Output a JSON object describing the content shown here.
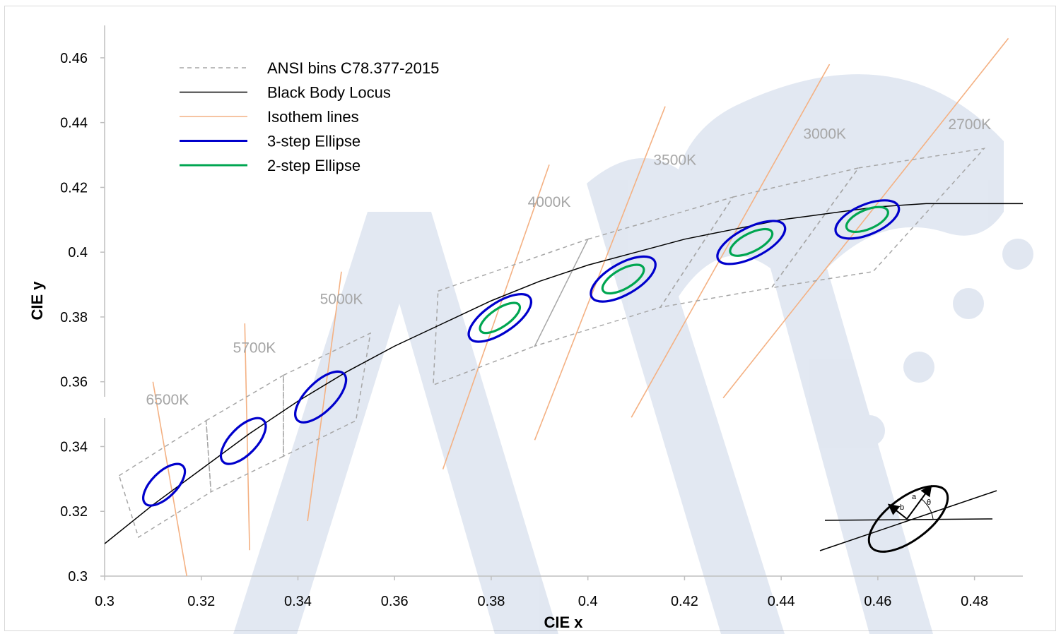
{
  "chart_data": {
    "type": "line",
    "xlabel": "CIE x",
    "ylabel": "CIE y",
    "xlim": [
      0.3,
      0.49
    ],
    "ylim": [
      0.3,
      0.47
    ],
    "x_ticks": [
      "0.3",
      "0.32",
      "0.34",
      "0.36",
      "0.38",
      "0.4",
      "0.42",
      "0.44",
      "0.46",
      "0.48"
    ],
    "y_ticks": [
      "0.3",
      "0.32",
      "0.34",
      "0.36",
      "0.38",
      "0.4",
      "0.42",
      "0.44",
      "0.46"
    ],
    "grid": false,
    "legend_position": "top-left",
    "legend": [
      {
        "label": "ANSI bins C78.377-2015",
        "color": "#a6a6a6",
        "style": "dashed",
        "width": 1.5
      },
      {
        "label": "Black Body Locus",
        "color": "#000000",
        "style": "solid",
        "width": 1.5
      },
      {
        "label": "Isothem lines",
        "color": "#f4b183",
        "style": "solid",
        "width": 1.5
      },
      {
        "label": "3-step Ellipse",
        "color": "#0000cc",
        "style": "solid",
        "width": 3
      },
      {
        "label": "2-step Ellipse",
        "color": "#00a651",
        "style": "solid",
        "width": 3
      }
    ],
    "colors": {
      "ansi": "#a6a6a6",
      "locus": "#000000",
      "isotherm": "#f4b183",
      "ellipse3": "#0000cc",
      "ellipse2": "#00a651",
      "cct_label": "#a6a6a6"
    },
    "locus": [
      [
        0.3,
        0.31
      ],
      [
        0.31,
        0.322
      ],
      [
        0.32,
        0.333
      ],
      [
        0.33,
        0.344
      ],
      [
        0.34,
        0.354
      ],
      [
        0.35,
        0.363
      ],
      [
        0.36,
        0.371
      ],
      [
        0.37,
        0.378
      ],
      [
        0.38,
        0.385
      ],
      [
        0.39,
        0.391
      ],
      [
        0.4,
        0.396
      ],
      [
        0.41,
        0.4
      ],
      [
        0.42,
        0.404
      ],
      [
        0.43,
        0.407
      ],
      [
        0.44,
        0.41
      ],
      [
        0.45,
        0.412
      ],
      [
        0.46,
        0.414
      ],
      [
        0.47,
        0.415
      ],
      [
        0.48,
        0.415
      ],
      [
        0.49,
        0.415
      ]
    ],
    "isotherms": [
      {
        "cct": "6500K",
        "from": [
          0.31,
          0.36
        ],
        "to": [
          0.317,
          0.3
        ],
        "label_at": [
          0.313,
          0.353
        ]
      },
      {
        "cct": "5700K",
        "from": [
          0.329,
          0.378
        ],
        "to": [
          0.33,
          0.308
        ],
        "label_at": [
          0.331,
          0.369
        ]
      },
      {
        "cct": "5000K",
        "from": [
          0.349,
          0.394
        ],
        "to": [
          0.342,
          0.317
        ],
        "label_at": [
          0.349,
          0.384
        ]
      },
      {
        "cct": "4000K",
        "from": [
          0.392,
          0.427
        ],
        "to": [
          0.37,
          0.333
        ],
        "label_at": [
          0.392,
          0.414
        ]
      },
      {
        "cct": "3500K",
        "from": [
          0.416,
          0.445
        ],
        "to": [
          0.389,
          0.342
        ],
        "label_at": [
          0.418,
          0.427
        ]
      },
      {
        "cct": "3000K",
        "from": [
          0.45,
          0.458
        ],
        "to": [
          0.409,
          0.349
        ],
        "label_at": [
          0.449,
          0.435
        ]
      },
      {
        "cct": "2700K",
        "from": [
          0.487,
          0.466
        ],
        "to": [
          0.428,
          0.355
        ],
        "label_at": [
          0.479,
          0.438
        ]
      }
    ],
    "ansi_bins": [
      [
        [
          0.303,
          0.331
        ],
        [
          0.321,
          0.348
        ],
        [
          0.322,
          0.326
        ],
        [
          0.307,
          0.312
        ]
      ],
      [
        [
          0.321,
          0.348
        ],
        [
          0.337,
          0.362
        ],
        [
          0.337,
          0.337
        ],
        [
          0.322,
          0.326
        ]
      ],
      [
        [
          0.337,
          0.362
        ],
        [
          0.355,
          0.375
        ],
        [
          0.352,
          0.348
        ],
        [
          0.337,
          0.337
        ]
      ],
      [
        [
          0.369,
          0.388
        ],
        [
          0.4,
          0.404
        ],
        [
          0.389,
          0.371
        ],
        [
          0.368,
          0.359
        ]
      ],
      [
        [
          0.4,
          0.404
        ],
        [
          0.43,
          0.417
        ],
        [
          0.415,
          0.383
        ],
        [
          0.389,
          0.371
        ]
      ],
      [
        [
          0.43,
          0.417
        ],
        [
          0.456,
          0.426
        ],
        [
          0.438,
          0.389
        ],
        [
          0.415,
          0.383
        ]
      ],
      [
        [
          0.456,
          0.426
        ],
        [
          0.482,
          0.432
        ],
        [
          0.459,
          0.394
        ],
        [
          0.438,
          0.389
        ]
      ]
    ],
    "ellipses_3step": [
      {
        "cx": 0.3123,
        "cy": 0.3282,
        "rx": 0.0055,
        "ry": 0.0026,
        "angle": 45
      },
      {
        "cx": 0.3287,
        "cy": 0.3417,
        "rx": 0.006,
        "ry": 0.0028,
        "angle": 46
      },
      {
        "cx": 0.3447,
        "cy": 0.3553,
        "rx": 0.0068,
        "ry": 0.003,
        "angle": 45
      },
      {
        "cx": 0.3818,
        "cy": 0.3797,
        "rx": 0.0075,
        "ry": 0.0031,
        "angle": 34
      },
      {
        "cx": 0.4073,
        "cy": 0.3917,
        "rx": 0.0075,
        "ry": 0.0032,
        "angle": 30
      },
      {
        "cx": 0.4338,
        "cy": 0.403,
        "rx": 0.0077,
        "ry": 0.0031,
        "angle": 27
      },
      {
        "cx": 0.4578,
        "cy": 0.4101,
        "rx": 0.007,
        "ry": 0.0031,
        "angle": 23
      }
    ],
    "ellipses_2step": [
      {
        "cx": 0.3818,
        "cy": 0.3797,
        "rx": 0.0048,
        "ry": 0.0019,
        "angle": 34
      },
      {
        "cx": 0.4073,
        "cy": 0.3917,
        "rx": 0.0048,
        "ry": 0.002,
        "angle": 30
      },
      {
        "cx": 0.4338,
        "cy": 0.403,
        "rx": 0.0048,
        "ry": 0.0019,
        "angle": 27
      },
      {
        "cx": 0.4578,
        "cy": 0.4101,
        "rx": 0.0046,
        "ry": 0.002,
        "angle": 23
      }
    ],
    "inset_labels": {
      "a": "a",
      "b": "b",
      "theta": "θ"
    }
  }
}
